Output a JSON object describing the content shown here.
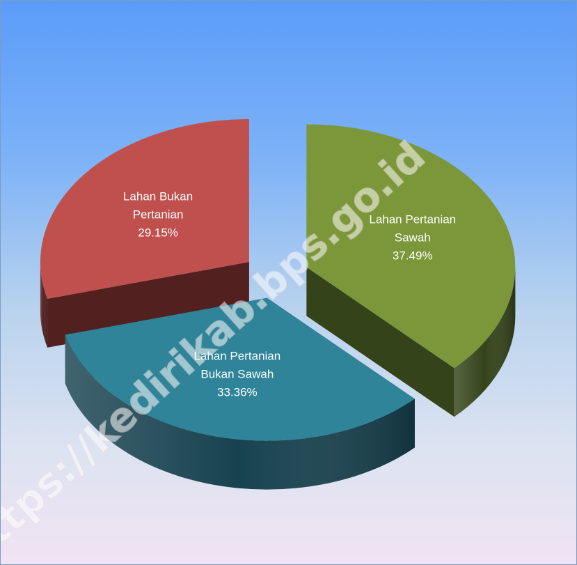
{
  "chart_data": {
    "type": "pie",
    "style": "3d-exploded",
    "categories": [
      "Lahan Pertanian Sawah",
      "Lahan Pertanian Bukan Sawah",
      "Lahan Bukan Pertanian"
    ],
    "values": [
      37.49,
      33.36,
      29.15
    ],
    "unit": "%",
    "data_labels": [
      {
        "lines": [
          "Lahan Pertanian",
          "Sawah",
          "37.49%"
        ]
      },
      {
        "lines": [
          "Lahan Pertanian",
          "Bukan Sawah",
          "33.36%"
        ]
      },
      {
        "lines": [
          "Lahan Bukan",
          "Pertanian",
          "29.15%"
        ]
      }
    ],
    "colors": [
      "#7b973a",
      "#2f8499",
      "#c0504d"
    ],
    "side_colors": [
      "#34431a",
      "#17424f",
      "#532020"
    ],
    "legend": "none",
    "title": ""
  },
  "watermark": "https://kedirikab.bps.go.id"
}
